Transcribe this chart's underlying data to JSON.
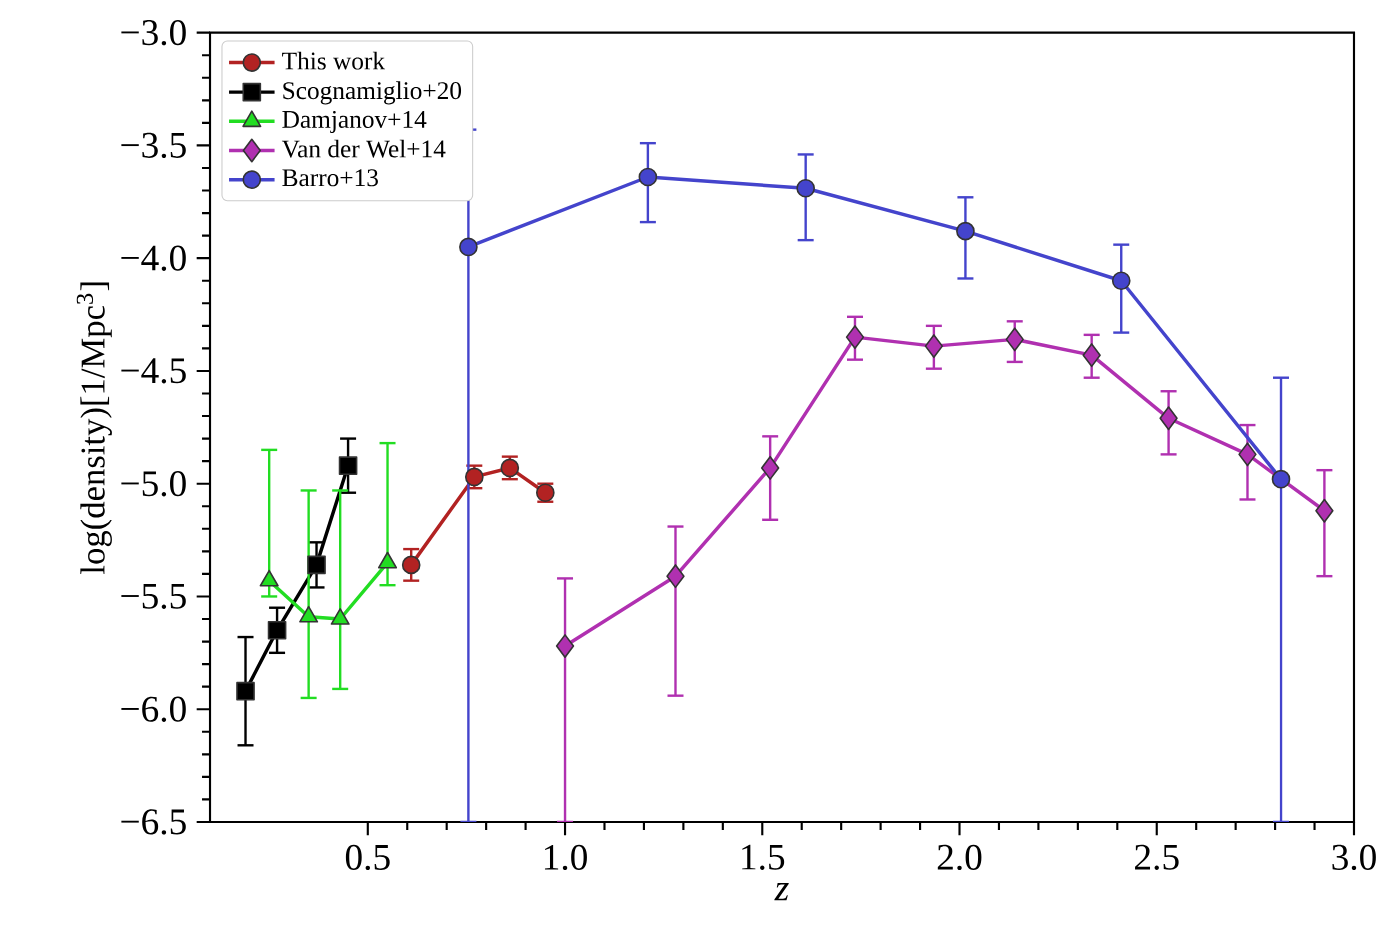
{
  "chart_data": {
    "type": "line",
    "xlabel": "z",
    "ylabel": "log(density)[1/Mpc$^{3}$]",
    "xlim": [
      0.1,
      3.0
    ],
    "ylim": [
      -6.5,
      -3.0
    ],
    "xticks": [
      {
        "value": 0.5,
        "label": "0.5"
      },
      {
        "value": 1.0,
        "label": "1.0"
      },
      {
        "value": 1.5,
        "label": "1.5"
      },
      {
        "value": 2.0,
        "label": "2.0"
      },
      {
        "value": 2.5,
        "label": "2.5"
      },
      {
        "value": 3.0,
        "label": "3.0"
      }
    ],
    "yticks": [
      {
        "value": -6.5,
        "label": "−6.5"
      },
      {
        "value": -6.0,
        "label": "−6.0"
      },
      {
        "value": -5.5,
        "label": "−5.5"
      },
      {
        "value": -5.0,
        "label": "−5.0"
      },
      {
        "value": -4.5,
        "label": "−4.5"
      },
      {
        "value": -4.0,
        "label": "−4.0"
      },
      {
        "value": -3.5,
        "label": "−3.5"
      },
      {
        "value": -3.0,
        "label": "−3.0"
      }
    ],
    "legend": "top left",
    "series": [
      {
        "name": "This work",
        "color": "#b22222",
        "marker": "circle",
        "x": [
          0.61,
          0.77,
          0.86,
          0.95
        ],
        "values": [
          -5.36,
          -4.97,
          -4.93,
          -5.04
        ],
        "errors": [
          [
            -5.43,
            -5.29
          ],
          [
            -5.02,
            -4.92
          ],
          [
            -4.98,
            -4.88
          ],
          [
            -5.08,
            -5.0
          ]
        ]
      },
      {
        "name": "Scognamiglio+20",
        "color": "#000000",
        "marker": "square",
        "x": [
          0.19,
          0.27,
          0.37,
          0.45
        ],
        "values": [
          -5.92,
          -5.65,
          -5.36,
          -4.92
        ],
        "errors": [
          [
            -6.16,
            -5.68
          ],
          [
            -5.75,
            -5.55
          ],
          [
            -5.46,
            -5.26
          ],
          [
            -5.04,
            -4.8
          ]
        ]
      },
      {
        "name": "Damjanov+14",
        "color": "#22dd22",
        "marker": "triangle",
        "x": [
          0.25,
          0.35,
          0.43,
          0.55
        ],
        "values": [
          -5.43,
          -5.59,
          -5.6,
          -5.35
        ],
        "errors": [
          [
            -5.5,
            -4.85
          ],
          [
            -5.95,
            -5.03
          ],
          [
            -5.91,
            -5.03
          ],
          [
            -5.45,
            -4.82
          ]
        ]
      },
      {
        "name": "Van der Wel+14",
        "color": "#b030b0",
        "marker": "diamond",
        "x": [
          1.0,
          1.28,
          1.52,
          1.735,
          1.935,
          2.14,
          2.335,
          2.53,
          2.73,
          2.925
        ],
        "values": [
          -5.72,
          -5.41,
          -4.93,
          -4.35,
          -4.39,
          -4.36,
          -4.43,
          -4.71,
          -4.87,
          -5.12
        ],
        "errors": [
          [
            -6.5,
            -5.42
          ],
          [
            -5.94,
            -5.19
          ],
          [
            -5.16,
            -4.79
          ],
          [
            -4.45,
            -4.26
          ],
          [
            -4.49,
            -4.3
          ],
          [
            -4.46,
            -4.28
          ],
          [
            -4.53,
            -4.34
          ],
          [
            -4.87,
            -4.59
          ],
          [
            -5.07,
            -4.74
          ],
          [
            -5.41,
            -4.94
          ]
        ]
      },
      {
        "name": "Barro+13",
        "color": "#4444cc",
        "marker": "circle",
        "x": [
          0.755,
          1.21,
          1.61,
          2.015,
          2.41,
          2.815
        ],
        "values": [
          -3.95,
          -3.64,
          -3.69,
          -3.88,
          -4.1,
          -4.98
        ],
        "errors": [
          [
            -6.5,
            -3.43
          ],
          [
            -3.84,
            -3.49
          ],
          [
            -3.92,
            -3.54
          ],
          [
            -4.09,
            -3.73
          ],
          [
            -4.33,
            -3.94
          ],
          [
            -6.5,
            -4.53
          ]
        ]
      }
    ]
  }
}
